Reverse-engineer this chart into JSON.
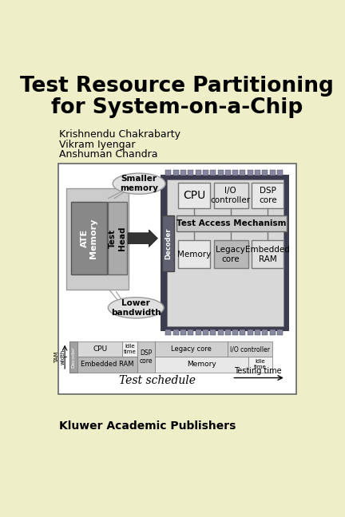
{
  "bg_color": "#eeeec8",
  "title_line1": "Test Resource Partitioning",
  "title_line2": "for System-on-a-Chip",
  "authors": [
    "Krishnendu Chakrabarty",
    "Vikram Iyengar",
    "Anshuman Chandra"
  ],
  "publisher": "Kluwer Academic Publishers",
  "diagram_bg": "#ffffff",
  "chip_dark": "#3c3c50",
  "chip_pin_color": "#8888a0",
  "inner_chip_bg": "#d8d8d8",
  "decoder_color": "#606070",
  "ate_outer": "#cccccc",
  "ate_inner": "#888888",
  "test_head_color": "#aaaaaa",
  "cpu_box": "#e8e8e8",
  "io_box": "#e0e0e0",
  "dsp_box": "#e8e8e8",
  "tam_box": "#c8c8c8",
  "mem_box": "#e8e8e8",
  "legacy_box": "#b8b8b8",
  "emb_box": "#e0e0e0",
  "bubble_color": "#e0e0e0",
  "line_color": "#888888",
  "sched_decoder_color": "#a0a0a0",
  "sched_cpu_color": "#d8d8d8",
  "sched_idle_color": "#f0f0f0",
  "sched_dsp_color": "#c8c8c8",
  "sched_emb_color": "#b8b8b8",
  "sched_legacy_color": "#d0d0d0",
  "sched_io_color": "#d0d0d0",
  "sched_mem_color": "#e8e8e8",
  "sched_idle2_color": "#f0f0f0"
}
